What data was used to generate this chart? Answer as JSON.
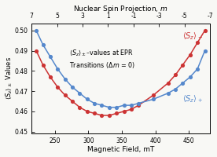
{
  "xlabel_bottom": "Magnetic Field, mT",
  "top_axis_label": "Nuclear Spin Projection, ",
  "top_axis_label_italic": "m",
  "color_minus": "#cc3333",
  "color_plus": "#5588cc",
  "background": "#f8f8f5",
  "ylim": [
    0.449,
    0.5035
  ],
  "xlim": [
    215,
    482
  ],
  "yticks": [
    0.45,
    0.46,
    0.47,
    0.48,
    0.49,
    0.5
  ],
  "xticks": [
    250,
    300,
    350,
    400,
    450
  ],
  "nuclear_spin_m": [
    7,
    5,
    3,
    1,
    -1,
    -3,
    -5,
    -7
  ],
  "magnetic_field": [
    222,
    232,
    243,
    254,
    265,
    276,
    287,
    298,
    309,
    320,
    331,
    342,
    353,
    364,
    375,
    397,
    419,
    430,
    441,
    452,
    463,
    474
  ],
  "sz_minus": [
    0.49,
    0.483,
    0.477,
    0.472,
    0.468,
    0.465,
    0.462,
    0.46,
    0.459,
    0.458,
    0.458,
    0.459,
    0.46,
    0.461,
    0.463,
    0.468,
    0.474,
    0.478,
    0.483,
    0.488,
    0.494,
    0.5
  ],
  "sz_plus": [
    0.5,
    0.493,
    0.487,
    0.481,
    0.476,
    0.472,
    0.469,
    0.466,
    0.464,
    0.463,
    0.462,
    0.462,
    0.463,
    0.463,
    0.464,
    0.466,
    0.469,
    0.471,
    0.474,
    0.477,
    0.481,
    0.49
  ]
}
